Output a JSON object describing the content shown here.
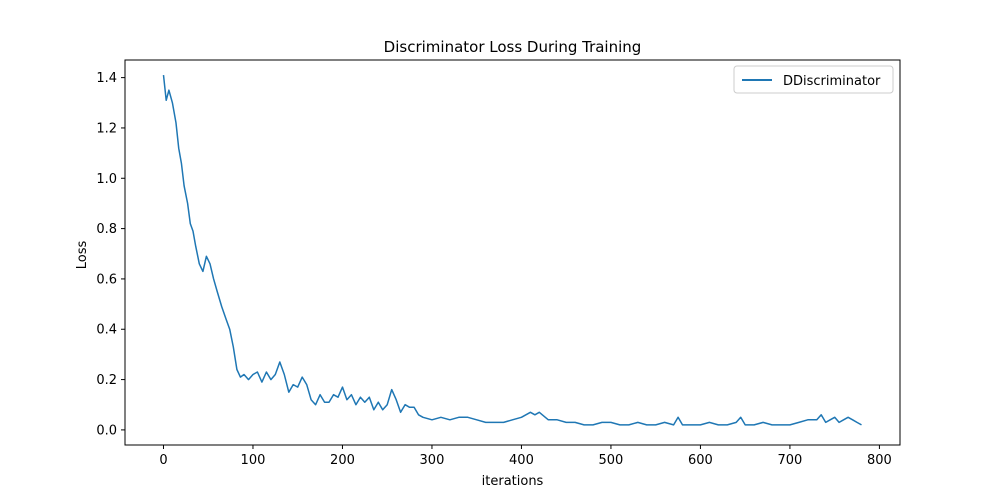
{
  "chart_data": {
    "type": "line",
    "title": "Discriminator Loss During Training",
    "xlabel": "iterations",
    "ylabel": "Loss",
    "xlim": [
      -43,
      823
    ],
    "ylim": [
      -0.06,
      1.47
    ],
    "xticks": [
      0,
      100,
      200,
      300,
      400,
      500,
      600,
      700,
      800
    ],
    "yticks": [
      0.0,
      0.2,
      0.4,
      0.6,
      0.8,
      1.0,
      1.2,
      1.4
    ],
    "grid": false,
    "legend_position": "top-right",
    "series": [
      {
        "name": "DDiscriminator",
        "color": "#1f77b4",
        "x": [
          0,
          3,
          6,
          10,
          14,
          17,
          20,
          23,
          27,
          30,
          33,
          36,
          40,
          44,
          48,
          52,
          56,
          60,
          65,
          70,
          74,
          78,
          82,
          86,
          90,
          95,
          100,
          105,
          110,
          115,
          120,
          125,
          130,
          135,
          140,
          145,
          150,
          155,
          160,
          165,
          170,
          175,
          180,
          185,
          190,
          195,
          200,
          205,
          210,
          215,
          220,
          225,
          230,
          235,
          240,
          245,
          250,
          255,
          260,
          265,
          270,
          275,
          280,
          285,
          290,
          300,
          310,
          320,
          330,
          340,
          350,
          360,
          370,
          380,
          390,
          400,
          405,
          410,
          415,
          420,
          430,
          440,
          450,
          460,
          470,
          480,
          490,
          500,
          510,
          520,
          530,
          540,
          550,
          560,
          570,
          575,
          580,
          590,
          600,
          610,
          620,
          630,
          640,
          645,
          650,
          660,
          670,
          680,
          690,
          700,
          710,
          720,
          730,
          735,
          740,
          745,
          750,
          755,
          760,
          765,
          770,
          775,
          780
        ],
        "y": [
          1.41,
          1.31,
          1.35,
          1.3,
          1.22,
          1.12,
          1.06,
          0.97,
          0.9,
          0.82,
          0.79,
          0.73,
          0.66,
          0.63,
          0.69,
          0.66,
          0.6,
          0.55,
          0.49,
          0.44,
          0.4,
          0.33,
          0.24,
          0.21,
          0.22,
          0.2,
          0.22,
          0.23,
          0.19,
          0.23,
          0.2,
          0.22,
          0.27,
          0.22,
          0.15,
          0.18,
          0.17,
          0.21,
          0.18,
          0.12,
          0.1,
          0.14,
          0.11,
          0.11,
          0.14,
          0.13,
          0.17,
          0.12,
          0.14,
          0.1,
          0.13,
          0.11,
          0.13,
          0.08,
          0.11,
          0.08,
          0.1,
          0.16,
          0.12,
          0.07,
          0.1,
          0.09,
          0.09,
          0.06,
          0.05,
          0.04,
          0.05,
          0.04,
          0.05,
          0.05,
          0.04,
          0.03,
          0.03,
          0.03,
          0.04,
          0.05,
          0.06,
          0.07,
          0.06,
          0.07,
          0.04,
          0.04,
          0.03,
          0.03,
          0.02,
          0.02,
          0.03,
          0.03,
          0.02,
          0.02,
          0.03,
          0.02,
          0.02,
          0.03,
          0.02,
          0.05,
          0.02,
          0.02,
          0.02,
          0.03,
          0.02,
          0.02,
          0.03,
          0.05,
          0.02,
          0.02,
          0.03,
          0.02,
          0.02,
          0.02,
          0.03,
          0.04,
          0.04,
          0.06,
          0.03,
          0.04,
          0.05,
          0.03,
          0.04,
          0.05,
          0.04,
          0.03,
          0.02
        ]
      }
    ]
  }
}
